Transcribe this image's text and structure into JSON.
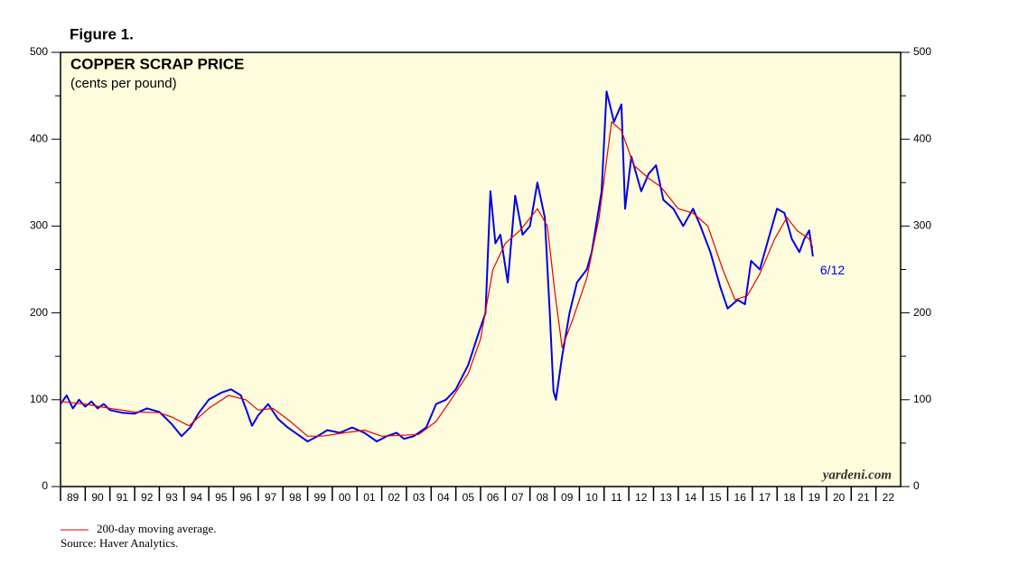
{
  "chart_data": {
    "type": "line",
    "figure_label": "Figure 1.",
    "title": "COPPER SCRAP PRICE",
    "subtitle": "(cents per pound)",
    "annotation": "6/12",
    "watermark": "yardeni.com",
    "source": "Source: Haver Analytics.",
    "xlim": [
      1989,
      2023
    ],
    "xticks": [
      {
        "value": 1989,
        "label": "89"
      },
      {
        "value": 1990,
        "label": "90"
      },
      {
        "value": 1991,
        "label": "91"
      },
      {
        "value": 1992,
        "label": "92"
      },
      {
        "value": 1993,
        "label": "93"
      },
      {
        "value": 1994,
        "label": "94"
      },
      {
        "value": 1995,
        "label": "95"
      },
      {
        "value": 1996,
        "label": "96"
      },
      {
        "value": 1997,
        "label": "97"
      },
      {
        "value": 1998,
        "label": "98"
      },
      {
        "value": 1999,
        "label": "99"
      },
      {
        "value": 2000,
        "label": "00"
      },
      {
        "value": 2001,
        "label": "01"
      },
      {
        "value": 2002,
        "label": "02"
      },
      {
        "value": 2003,
        "label": "03"
      },
      {
        "value": 2004,
        "label": "04"
      },
      {
        "value": 2005,
        "label": "05"
      },
      {
        "value": 2006,
        "label": "06"
      },
      {
        "value": 2007,
        "label": "07"
      },
      {
        "value": 2008,
        "label": "08"
      },
      {
        "value": 2009,
        "label": "09"
      },
      {
        "value": 2010,
        "label": "10"
      },
      {
        "value": 2011,
        "label": "11"
      },
      {
        "value": 2012,
        "label": "12"
      },
      {
        "value": 2013,
        "label": "13"
      },
      {
        "value": 2014,
        "label": "14"
      },
      {
        "value": 2015,
        "label": "15"
      },
      {
        "value": 2016,
        "label": "16"
      },
      {
        "value": 2017,
        "label": "17"
      },
      {
        "value": 2018,
        "label": "18"
      },
      {
        "value": 2019,
        "label": "19"
      },
      {
        "value": 2020,
        "label": "20"
      },
      {
        "value": 2021,
        "label": "21"
      },
      {
        "value": 2022,
        "label": "22"
      }
    ],
    "ylim": [
      0,
      500
    ],
    "yticks": [
      0,
      100,
      200,
      300,
      400,
      500
    ],
    "yminorticks": [
      50,
      150,
      250,
      350,
      450
    ],
    "series": [
      {
        "color": "#0000e6",
        "x": [
          1989.0,
          1989.25,
          1989.5,
          1989.75,
          1990.0,
          1990.25,
          1990.5,
          1990.75,
          1991.0,
          1991.5,
          1992.0,
          1992.5,
          1993.0,
          1993.5,
          1993.9,
          1994.25,
          1994.6,
          1995.0,
          1995.5,
          1995.9,
          1996.3,
          1996.5,
          1996.75,
          1997.0,
          1997.4,
          1997.8,
          1998.2,
          1998.6,
          1999.0,
          1999.4,
          1999.8,
          2000.3,
          2000.8,
          2001.3,
          2001.8,
          2002.2,
          2002.6,
          2002.9,
          2003.3,
          2003.8,
          2004.2,
          2004.6,
          2005.0,
          2005.5,
          2005.9,
          2006.2,
          2006.4,
          2006.6,
          2006.8,
          2007.1,
          2007.4,
          2007.7,
          2008.0,
          2008.3,
          2008.6,
          2008.8,
          2008.95,
          2009.05,
          2009.3,
          2009.6,
          2009.9,
          2010.3,
          2010.5,
          2010.9,
          2011.1,
          2011.4,
          2011.7,
          2011.85,
          2012.1,
          2012.5,
          2012.8,
          2013.1,
          2013.4,
          2013.8,
          2014.2,
          2014.6,
          2014.9,
          2015.3,
          2015.7,
          2016.0,
          2016.4,
          2016.7,
          2016.95,
          2017.3,
          2017.7,
          2018.0,
          2018.3,
          2018.6,
          2018.9,
          2019.1,
          2019.3,
          2019.45
        ],
        "values": [
          95,
          105,
          90,
          100,
          92,
          98,
          90,
          95,
          88,
          85,
          84,
          90,
          86,
          72,
          58,
          68,
          85,
          100,
          108,
          112,
          105,
          90,
          70,
          82,
          95,
          78,
          68,
          60,
          52,
          58,
          65,
          62,
          68,
          62,
          52,
          58,
          62,
          55,
          58,
          68,
          95,
          100,
          112,
          140,
          175,
          200,
          340,
          280,
          290,
          235,
          335,
          290,
          300,
          350,
          310,
          200,
          110,
          100,
          150,
          200,
          235,
          250,
          270,
          340,
          455,
          420,
          440,
          320,
          380,
          340,
          360,
          370,
          330,
          320,
          300,
          320,
          300,
          270,
          230,
          205,
          215,
          210,
          260,
          250,
          290,
          320,
          315,
          285,
          270,
          285,
          295,
          265
        ]
      },
      {
        "name": "200-day moving average.",
        "color": "#e60000",
        "x": [
          1989.0,
          1990.0,
          1991.0,
          1992.0,
          1993.0,
          1993.5,
          1994.2,
          1995.0,
          1995.8,
          1996.5,
          1997.0,
          1997.6,
          1998.3,
          1999.0,
          1999.6,
          2000.5,
          2001.3,
          2002.0,
          2003.5,
          2004.2,
          2004.8,
          2005.5,
          2006.0,
          2006.5,
          2007.0,
          2007.6,
          2008.3,
          2008.7,
          2009.0,
          2009.3,
          2009.7,
          2010.3,
          2010.8,
          2011.3,
          2011.7,
          2012.2,
          2012.8,
          2013.3,
          2014.0,
          2014.6,
          2015.2,
          2015.8,
          2016.3,
          2016.8,
          2017.3,
          2017.9,
          2018.4,
          2018.8,
          2019.3,
          2019.45
        ],
        "values": [
          98,
          95,
          90,
          86,
          85,
          80,
          70,
          90,
          105,
          100,
          88,
          90,
          75,
          58,
          58,
          62,
          65,
          58,
          60,
          75,
          100,
          130,
          170,
          250,
          280,
          295,
          320,
          300,
          225,
          160,
          190,
          240,
          310,
          420,
          410,
          370,
          355,
          345,
          320,
          315,
          300,
          250,
          215,
          220,
          245,
          285,
          310,
          295,
          285,
          275
        ]
      }
    ]
  }
}
